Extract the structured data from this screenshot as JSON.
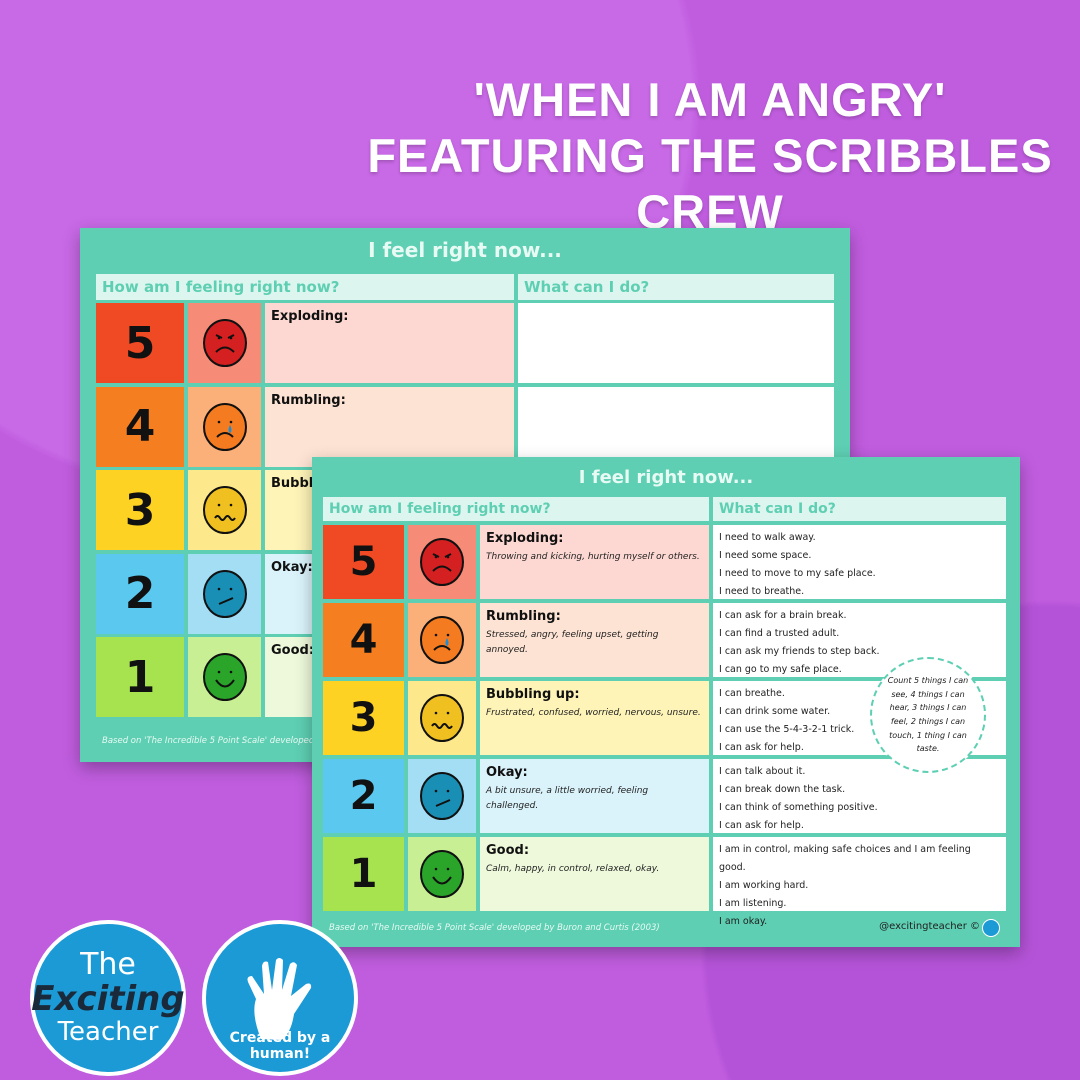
{
  "headline": "'When I am Angry' featuring the Scribbles Crew",
  "sheet": {
    "title": "I feel right now...",
    "col_left": "How am I feeling right now?",
    "col_right": "What can I do?",
    "footer": "Based on 'The Incredible 5 Point Scale' developed by Buron and Curtis (2003)",
    "credit": "@excitingteacher ©",
    "tip": "Count 5 things I can see, 4 things I can hear, 3 things I can feel, 2 things I can touch, 1 thing I can taste.",
    "rows": [
      {
        "num": "5",
        "label": "Exploding:",
        "desc": "Throwing and kicking, hurting myself or others.",
        "face": "angry-face-icon",
        "colors": [
          "#f04a24",
          "#f68b78",
          "#fdd8d2",
          "#d42020"
        ],
        "actions": [
          "I need to walk away.",
          "I need some space.",
          "I need to move to my safe place.",
          "I need to breathe."
        ]
      },
      {
        "num": "4",
        "label": "Rumbling:",
        "desc": "Stressed, angry, feeling upset, getting annoyed.",
        "face": "crying-face-icon",
        "colors": [
          "#f57f20",
          "#fbb07a",
          "#fde3d3",
          "#f47b20"
        ],
        "actions": [
          "I can ask for a brain break.",
          "I can find a trusted adult.",
          "I can ask my friends to step back.",
          "I can go to my safe place."
        ]
      },
      {
        "num": "3",
        "label": "Bubbling up:",
        "desc": "Frustrated, confused, worried, nervous, unsure.",
        "face": "wavy-mouth-face-icon",
        "colors": [
          "#fdd223",
          "#fde98c",
          "#fef4b8",
          "#f0c020"
        ],
        "actions": [
          "I can breathe.",
          "I can drink some water.",
          "I can use the 5-4-3-2-1 trick.",
          "I can ask for help."
        ]
      },
      {
        "num": "2",
        "label": "Okay:",
        "desc": "A bit unsure, a little worried, feeling challenged.",
        "face": "unsure-face-icon",
        "colors": [
          "#5bc8f0",
          "#a3def5",
          "#daf3fb",
          "#1a8fb5"
        ],
        "actions": [
          "I can talk about it.",
          "I can break down the task.",
          "I can think of something positive.",
          "I can ask for help."
        ]
      },
      {
        "num": "1",
        "label": "Good:",
        "desc": "Calm, happy, in control, relaxed, okay.",
        "face": "smiling-face-icon",
        "colors": [
          "#a6e34f",
          "#c9ef95",
          "#eef9db",
          "#2aa52a"
        ],
        "actions": [
          "I am in control, making safe choices and I am feeling good.",
          "I am working hard.",
          "I am listening.",
          "I am okay."
        ]
      }
    ]
  },
  "badges": {
    "exciting_teacher": [
      "The",
      "Exciting",
      "Teacher"
    ],
    "human": "Created by a human!"
  }
}
